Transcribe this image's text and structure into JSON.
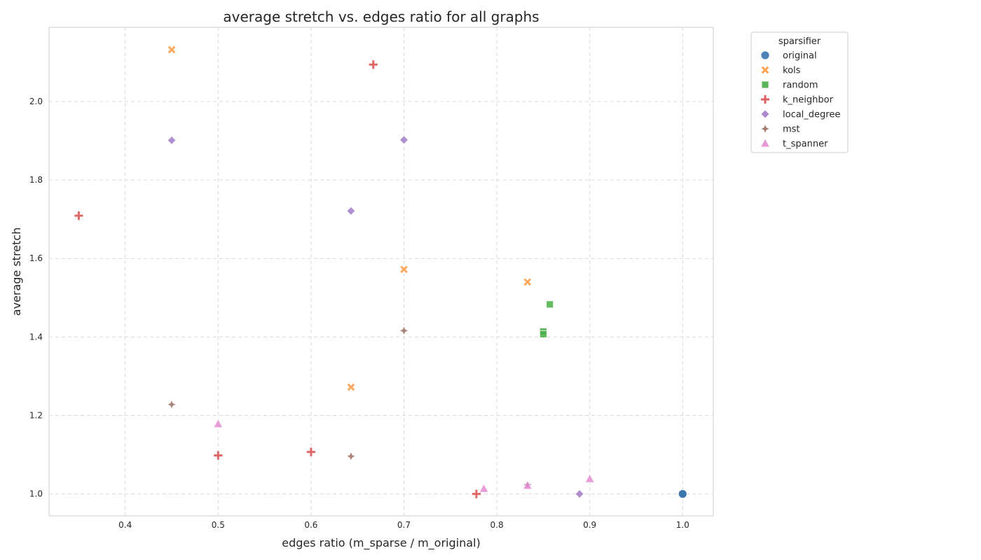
{
  "chart_data": {
    "type": "scatter",
    "title": "average stretch vs. edges ratio for all graphs",
    "xlabel": "edges ratio (m_sparse / m_original)",
    "ylabel": "average stretch",
    "xlim": [
      0.318,
      1.033
    ],
    "ylim": [
      0.944,
      2.189
    ],
    "xticks": [
      0.4,
      0.5,
      0.6,
      0.7,
      0.8,
      0.9,
      1.0
    ],
    "xtick_labels": [
      "0.4",
      "0.5",
      "0.6",
      "0.7",
      "0.8",
      "0.9",
      "1.0"
    ],
    "yticks": [
      1.0,
      1.2,
      1.4,
      1.6,
      1.8,
      2.0
    ],
    "ytick_labels": [
      "1.0",
      "1.2",
      "1.4",
      "1.6",
      "1.8",
      "2.0"
    ],
    "grid": true,
    "legend_title": "sparsifier",
    "legend_position": "outside-top-right",
    "series": [
      {
        "name": "original",
        "marker": "circle",
        "color": "#3b75af",
        "points": [
          [
            1.0,
            1.0
          ],
          [
            1.0,
            1.0
          ],
          [
            1.0,
            1.0
          ]
        ]
      },
      {
        "name": "kols",
        "marker": "x",
        "color": "#fd9a44",
        "points": [
          [
            0.45,
            2.132
          ],
          [
            0.7,
            1.572
          ],
          [
            0.833,
            1.54
          ],
          [
            0.643,
            1.272
          ]
        ]
      },
      {
        "name": "random",
        "marker": "square",
        "color": "#4aae47",
        "points": [
          [
            0.857,
            1.483
          ],
          [
            0.85,
            1.414
          ],
          [
            0.85,
            1.407
          ]
        ]
      },
      {
        "name": "k_neighbor",
        "marker": "plus",
        "color": "#d94f4f",
        "points": [
          [
            0.667,
            2.094
          ],
          [
            0.35,
            1.709
          ],
          [
            0.5,
            1.098
          ],
          [
            0.6,
            1.107
          ],
          [
            0.778,
            1.0
          ]
        ]
      },
      {
        "name": "local_degree",
        "marker": "diamond",
        "color": "#a27cc8",
        "points": [
          [
            0.45,
            1.901
          ],
          [
            0.7,
            1.902
          ],
          [
            0.643,
            1.721
          ],
          [
            0.889,
            1.0
          ],
          [
            0.833,
            1.023
          ]
        ]
      },
      {
        "name": "mst",
        "marker": "star4",
        "color": "#9c6e61",
        "points": [
          [
            0.7,
            1.416
          ],
          [
            0.45,
            1.228
          ],
          [
            0.643,
            1.096
          ],
          [
            0.833,
            1.024
          ]
        ]
      },
      {
        "name": "t_spanner",
        "marker": "triangle",
        "color": "#e58dd2",
        "points": [
          [
            0.5,
            1.178
          ],
          [
            0.786,
            1.013
          ],
          [
            0.833,
            1.021
          ],
          [
            0.9,
            1.038
          ]
        ]
      }
    ]
  }
}
